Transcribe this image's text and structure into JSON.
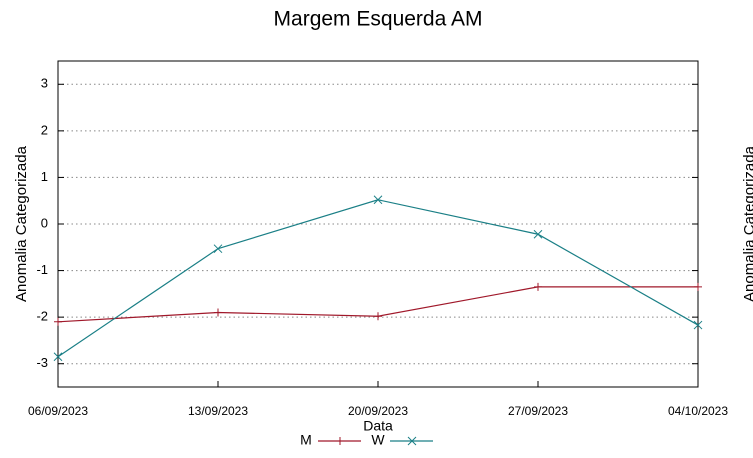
{
  "chart_data": {
    "type": "line",
    "title": "Margem Esquerda AM",
    "xlabel": "Data",
    "ylabel": "Anomalia Categorizada",
    "categories": [
      "06/09/2023",
      "13/09/2023",
      "20/09/2023",
      "27/09/2023",
      "04/10/2023"
    ],
    "series": [
      {
        "name": "M",
        "color": "#a0182a",
        "marker": "+",
        "values": [
          -2.1,
          -1.9,
          -1.98,
          -1.35,
          -1.35
        ]
      },
      {
        "name": "W",
        "color": "#1a7f86",
        "marker": "x",
        "values": [
          -2.85,
          -0.53,
          0.52,
          -0.22,
          -2.17
        ]
      }
    ],
    "ylim": [
      -3.5,
      3.5
    ],
    "yticks": [
      -3,
      -2,
      -1,
      0,
      1,
      2,
      3
    ],
    "grid": true,
    "legend": "bottom"
  },
  "clipped_panel": {
    "ylabel": "Anomalia Categorizada"
  }
}
